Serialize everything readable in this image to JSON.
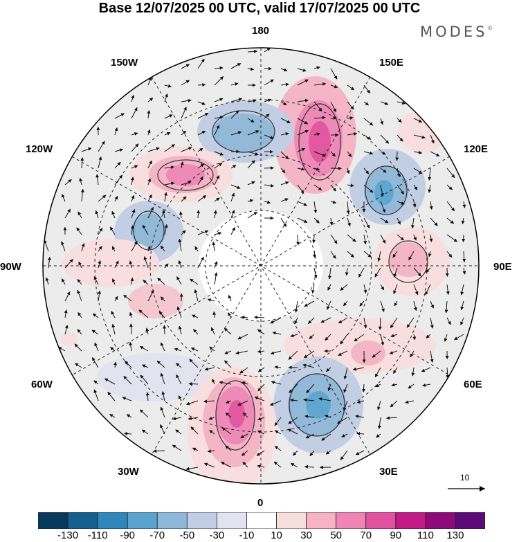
{
  "title": "Base 12/07/2025 00 UTC, valid 17/07/2025 00 UTC",
  "logo": {
    "text": "MODES",
    "mark": "©"
  },
  "map": {
    "projection": "north-polar-stereographic",
    "longitude_labels": {
      "n180": "180",
      "e150": "150E",
      "e120": "120E",
      "e90": "90E",
      "e60": "60E",
      "e30": "30E",
      "s0": "0",
      "w30": "30W",
      "w60": "60W",
      "w90": "90W",
      "w120": "120W",
      "w150": "150W"
    },
    "vector_reference": {
      "value": "10",
      "icon": "arrow-right-icon"
    }
  },
  "colorbar": {
    "colors": [
      "#083a5e",
      "#135f8e",
      "#2f86bb",
      "#5aa3cf",
      "#8fb7d9",
      "#c0cde4",
      "#e3e3f0",
      "#ffffff",
      "#f9dede",
      "#f5b3c5",
      "#ef85b5",
      "#e2529e",
      "#c21b86",
      "#8d0a78",
      "#5b0a78"
    ],
    "tick_labels": [
      "-130",
      "-110",
      "-90",
      "-70",
      "-50",
      "-30",
      "-10",
      "10",
      "30",
      "50",
      "70",
      "90",
      "110",
      "130"
    ]
  }
}
